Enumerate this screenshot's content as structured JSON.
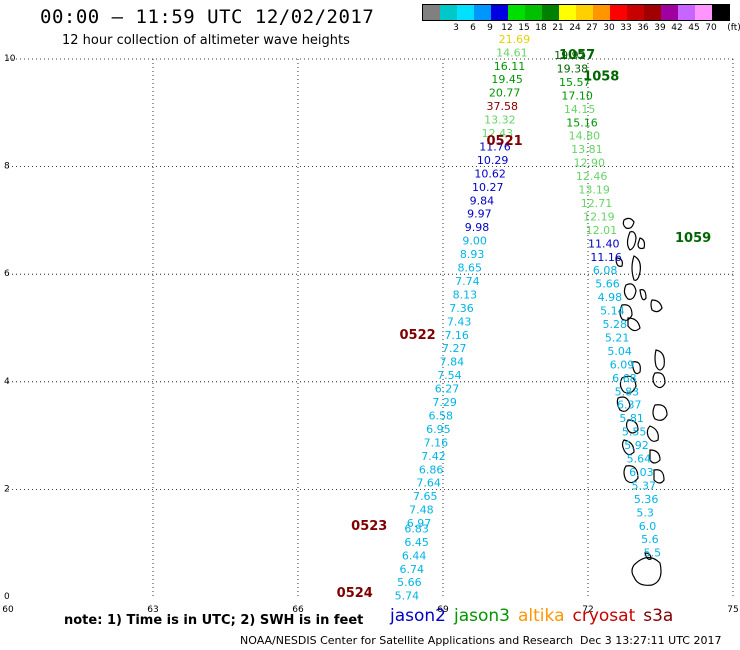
{
  "title": "00:00 – 11:59 UTC 12/02/2017",
  "subtitle": "12 hour collection of altimeter wave heights",
  "color_scale": {
    "unit": "(ft)",
    "bins": [
      {
        "label": "",
        "color": "#808080"
      },
      {
        "label": "3",
        "color": "#00c8c8"
      },
      {
        "label": "6",
        "color": "#00e0ff"
      },
      {
        "label": "9",
        "color": "#0096ff"
      },
      {
        "label": "12",
        "color": "#0000e0"
      },
      {
        "label": "15",
        "color": "#00e000"
      },
      {
        "label": "18",
        "color": "#00c000"
      },
      {
        "label": "21",
        "color": "#008000"
      },
      {
        "label": "24",
        "color": "#ffff00"
      },
      {
        "label": "27",
        "color": "#ffd000"
      },
      {
        "label": "30",
        "color": "#ff9600"
      },
      {
        "label": "33",
        "color": "#ff0000"
      },
      {
        "label": "36",
        "color": "#c80000"
      },
      {
        "label": "39",
        "color": "#a00000"
      },
      {
        "label": "42",
        "color": "#a000a0"
      },
      {
        "label": "45",
        "color": "#c864ff"
      },
      {
        "label": "70",
        "color": "#ff96ff"
      },
      {
        "label": "",
        "color": "#000000"
      }
    ]
  },
  "axes": {
    "x_ticks": [
      "60",
      "63",
      "66",
      "69",
      "72",
      "75"
    ],
    "y_ticks": [
      "0",
      "2",
      "4",
      "6",
      "8",
      "10"
    ]
  },
  "colors": {
    "cyan": "#00b4e6",
    "blue": "#0000c8",
    "light_green": "#66d466",
    "green": "#009600",
    "dark_green": "#006400",
    "gold": "#e6d200",
    "dark_red": "#800000"
  },
  "passes": [
    {
      "label": "1057",
      "lon": 71.4,
      "lat": 10.0,
      "color": "dark_green"
    },
    {
      "label": "1058",
      "lon": 71.9,
      "lat": 9.6,
      "color": "dark_green"
    },
    {
      "label": "0521",
      "lon": 69.9,
      "lat": 8.4,
      "color": "dark_red"
    },
    {
      "label": "1059",
      "lon": 73.8,
      "lat": 6.6,
      "color": "dark_green"
    },
    {
      "label": "0522",
      "lon": 68.1,
      "lat": 4.8,
      "color": "dark_red"
    },
    {
      "label": "0523",
      "lon": 67.1,
      "lat": 1.25,
      "color": "dark_red"
    },
    {
      "label": "0524",
      "lon": 66.8,
      "lat": 0.0,
      "color": "dark_red"
    }
  ],
  "track_west": [
    {
      "v": "5.74",
      "lon": 68.0,
      "lat": -0.05,
      "c": "cyan"
    },
    {
      "v": "5.66",
      "lon": 68.05,
      "lat": 0.2,
      "c": "cyan"
    },
    {
      "v": "6.74",
      "lon": 68.1,
      "lat": 0.45,
      "c": "cyan"
    },
    {
      "v": "6.44",
      "lon": 68.15,
      "lat": 0.7,
      "c": "cyan"
    },
    {
      "v": "6.45",
      "lon": 68.2,
      "lat": 0.95,
      "c": "cyan"
    },
    {
      "v": "6.83",
      "lon": 68.2,
      "lat": 1.2,
      "c": "cyan"
    },
    {
      "v": "6.97",
      "lon": 68.25,
      "lat": 1.3,
      "c": "cyan"
    },
    {
      "v": "7.48",
      "lon": 68.3,
      "lat": 1.55,
      "c": "cyan"
    },
    {
      "v": "7.65",
      "lon": 68.38,
      "lat": 1.8,
      "c": "cyan"
    },
    {
      "v": "7.64",
      "lon": 68.45,
      "lat": 2.05,
      "c": "cyan"
    },
    {
      "v": "6.86",
      "lon": 68.5,
      "lat": 2.3,
      "c": "cyan"
    },
    {
      "v": "7.42",
      "lon": 68.55,
      "lat": 2.55,
      "c": "cyan"
    },
    {
      "v": "7.16",
      "lon": 68.6,
      "lat": 2.8,
      "c": "cyan"
    },
    {
      "v": "6.95",
      "lon": 68.65,
      "lat": 3.05,
      "c": "cyan"
    },
    {
      "v": "6.58",
      "lon": 68.7,
      "lat": 3.3,
      "c": "cyan"
    },
    {
      "v": "7.29",
      "lon": 68.78,
      "lat": 3.55,
      "c": "cyan"
    },
    {
      "v": "6.27",
      "lon": 68.83,
      "lat": 3.8,
      "c": "cyan"
    },
    {
      "v": "7.54",
      "lon": 68.88,
      "lat": 4.05,
      "c": "cyan"
    },
    {
      "v": "7.84",
      "lon": 68.93,
      "lat": 4.3,
      "c": "cyan"
    },
    {
      "v": "7.27",
      "lon": 68.98,
      "lat": 4.55,
      "c": "cyan"
    },
    {
      "v": "7.16",
      "lon": 69.03,
      "lat": 4.8,
      "c": "cyan"
    },
    {
      "v": "7.43",
      "lon": 69.08,
      "lat": 5.05,
      "c": "cyan"
    },
    {
      "v": "7.36",
      "lon": 69.13,
      "lat": 5.3,
      "c": "cyan"
    },
    {
      "v": "8.13",
      "lon": 69.2,
      "lat": 5.55,
      "c": "cyan"
    },
    {
      "v": "7.74",
      "lon": 69.25,
      "lat": 5.8,
      "c": "cyan"
    },
    {
      "v": "8.65",
      "lon": 69.3,
      "lat": 6.05,
      "c": "cyan"
    },
    {
      "v": "8.93",
      "lon": 69.35,
      "lat": 6.3,
      "c": "cyan"
    },
    {
      "v": "9.00",
      "lon": 69.4,
      "lat": 6.55,
      "c": "cyan"
    },
    {
      "v": "9.98",
      "lon": 69.45,
      "lat": 6.8,
      "c": "blue"
    },
    {
      "v": "9.97",
      "lon": 69.5,
      "lat": 7.05,
      "c": "blue"
    },
    {
      "v": "9.84",
      "lon": 69.55,
      "lat": 7.3,
      "c": "blue"
    },
    {
      "v": "10.27",
      "lon": 69.6,
      "lat": 7.55,
      "c": "blue"
    },
    {
      "v": "10.62",
      "lon": 69.65,
      "lat": 7.8,
      "c": "blue"
    },
    {
      "v": "10.29",
      "lon": 69.7,
      "lat": 8.05,
      "c": "blue"
    },
    {
      "v": "11.76",
      "lon": 69.75,
      "lat": 8.3,
      "c": "blue"
    },
    {
      "v": "12.43",
      "lon": 69.8,
      "lat": 8.55,
      "c": "light_green"
    },
    {
      "v": "13.32",
      "lon": 69.85,
      "lat": 8.8,
      "c": "light_green"
    },
    {
      "v": "37.58",
      "lon": 69.9,
      "lat": 9.05,
      "c": "dark_red"
    },
    {
      "v": "20.77",
      "lon": 69.95,
      "lat": 9.3,
      "c": "green"
    },
    {
      "v": "19.45",
      "lon": 70.0,
      "lat": 9.55,
      "c": "green"
    },
    {
      "v": "16.11",
      "lon": 70.05,
      "lat": 9.8,
      "c": "green"
    },
    {
      "v": "14.61",
      "lon": 70.1,
      "lat": 10.05,
      "c": "light_green"
    },
    {
      "v": "21.69",
      "lon": 70.15,
      "lat": 10.3,
      "c": "gold"
    }
  ],
  "track_east": [
    {
      "v": "19.92",
      "lon": 71.3,
      "lat": 10.0,
      "c": "dark_green"
    },
    {
      "v": "19.38",
      "lon": 71.35,
      "lat": 9.75,
      "c": "dark_green"
    },
    {
      "v": "15.57",
      "lon": 71.4,
      "lat": 9.5,
      "c": "green"
    },
    {
      "v": "17.10",
      "lon": 71.45,
      "lat": 9.25,
      "c": "green"
    },
    {
      "v": "14.15",
      "lon": 71.5,
      "lat": 9.0,
      "c": "light_green"
    },
    {
      "v": "15.16",
      "lon": 71.55,
      "lat": 8.75,
      "c": "green"
    },
    {
      "v": "14.80",
      "lon": 71.6,
      "lat": 8.5,
      "c": "light_green"
    },
    {
      "v": "13.81",
      "lon": 71.65,
      "lat": 8.25,
      "c": "light_green"
    },
    {
      "v": "12.90",
      "lon": 71.7,
      "lat": 8.0,
      "c": "light_green"
    },
    {
      "v": "12.46",
      "lon": 71.75,
      "lat": 7.75,
      "c": "light_green"
    },
    {
      "v": "13.19",
      "lon": 71.8,
      "lat": 7.5,
      "c": "light_green"
    },
    {
      "v": "12.71",
      "lon": 71.85,
      "lat": 7.25,
      "c": "light_green"
    },
    {
      "v": "12.19",
      "lon": 71.9,
      "lat": 7.0,
      "c": "light_green"
    },
    {
      "v": "12.01",
      "lon": 71.95,
      "lat": 6.75,
      "c": "light_green"
    },
    {
      "v": "11.40",
      "lon": 72.0,
      "lat": 6.5,
      "c": "blue"
    },
    {
      "v": "11.16",
      "lon": 72.05,
      "lat": 6.25,
      "c": "blue"
    },
    {
      "v": "6.08",
      "lon": 72.1,
      "lat": 6.0,
      "c": "cyan"
    },
    {
      "v": "5.66",
      "lon": 72.15,
      "lat": 5.75,
      "c": "cyan"
    },
    {
      "v": "4.98",
      "lon": 72.2,
      "lat": 5.5,
      "c": "cyan"
    },
    {
      "v": "5.14",
      "lon": 72.25,
      "lat": 5.25,
      "c": "cyan"
    },
    {
      "v": "5.28",
      "lon": 72.3,
      "lat": 5.0,
      "c": "cyan"
    },
    {
      "v": "5.21",
      "lon": 72.35,
      "lat": 4.75,
      "c": "cyan"
    },
    {
      "v": "5.04",
      "lon": 72.4,
      "lat": 4.5,
      "c": "cyan"
    },
    {
      "v": "6.09",
      "lon": 72.45,
      "lat": 4.25,
      "c": "cyan"
    },
    {
      "v": "6.68",
      "lon": 72.5,
      "lat": 4.0,
      "c": "cyan"
    },
    {
      "v": "5.83",
      "lon": 72.55,
      "lat": 3.75,
      "c": "cyan"
    },
    {
      "v": "6.37",
      "lon": 72.6,
      "lat": 3.5,
      "c": "cyan"
    },
    {
      "v": "5.81",
      "lon": 72.65,
      "lat": 3.25,
      "c": "cyan"
    },
    {
      "v": "5.55",
      "lon": 72.7,
      "lat": 3.0,
      "c": "cyan"
    },
    {
      "v": "5.92",
      "lon": 72.75,
      "lat": 2.75,
      "c": "cyan"
    },
    {
      "v": "5.64",
      "lon": 72.8,
      "lat": 2.5,
      "c": "cyan"
    },
    {
      "v": "6.03",
      "lon": 72.85,
      "lat": 2.25,
      "c": "cyan"
    },
    {
      "v": "5.37",
      "lon": 72.9,
      "lat": 2.0,
      "c": "cyan"
    },
    {
      "v": "5.36",
      "lon": 72.95,
      "lat": 1.75,
      "c": "cyan"
    },
    {
      "v": "5.3",
      "lon": 73.0,
      "lat": 1.5,
      "c": "cyan"
    },
    {
      "v": "6.0",
      "lon": 73.05,
      "lat": 1.25,
      "c": "cyan"
    },
    {
      "v": "5.6",
      "lon": 73.1,
      "lat": 1.0,
      "c": "cyan"
    },
    {
      "v": "5.5",
      "lon": 73.15,
      "lat": 0.75,
      "c": "cyan"
    }
  ],
  "note": "note: 1) Time is in UTC; 2) SWH is in feet",
  "legend": [
    {
      "name": "jason2",
      "color": "#0000c8"
    },
    {
      "name": "jason3",
      "color": "#009600"
    },
    {
      "name": "altika",
      "color": "#ff9600"
    },
    {
      "name": "cryosat",
      "color": "#c80000"
    },
    {
      "name": "s3a",
      "color": "#800000"
    }
  ],
  "credit": "NOAA/NESDIS Center for Satellite Applications and Research",
  "timestamp": "Dec  3 13:27:11 UTC 2017"
}
